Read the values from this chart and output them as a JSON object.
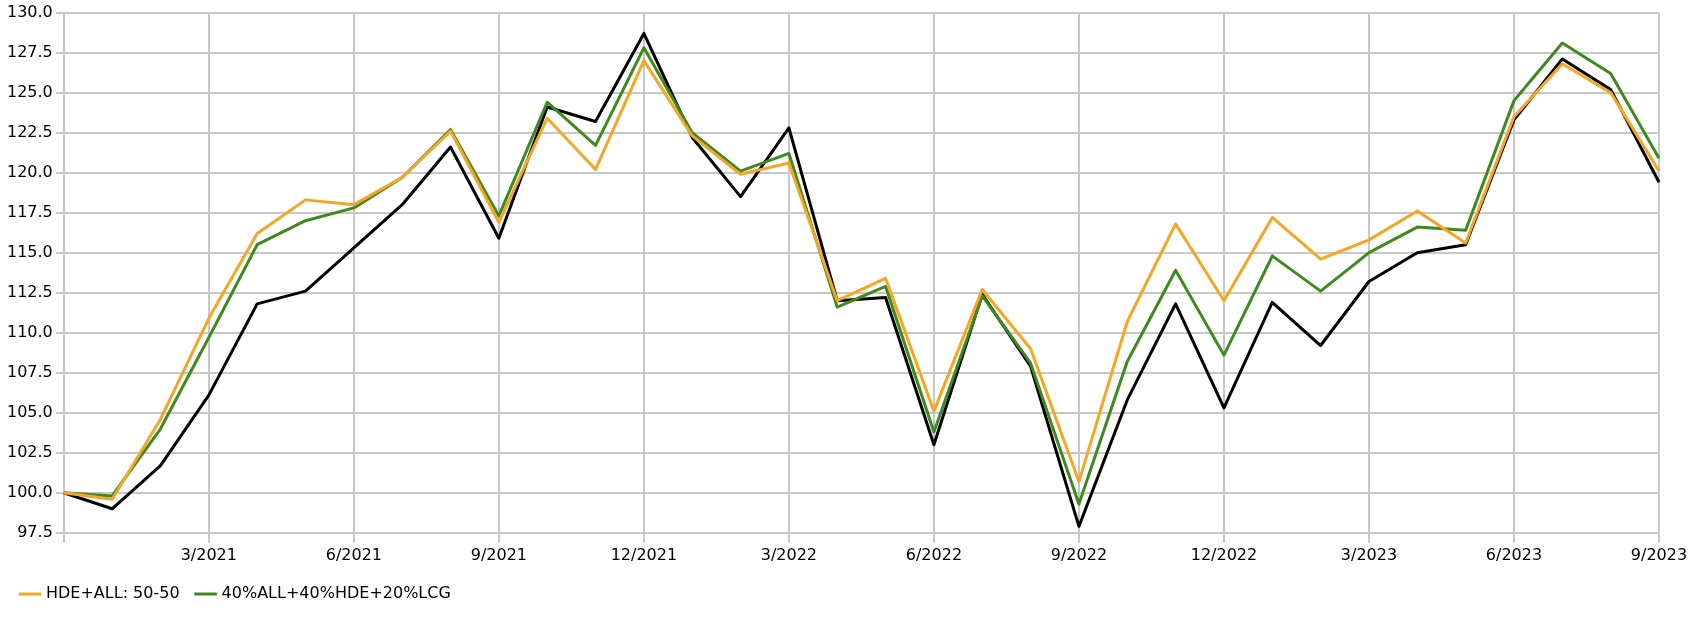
{
  "chart_data": {
    "type": "line",
    "categories": [
      null,
      null,
      null,
      "3/2021",
      null,
      null,
      "6/2021",
      null,
      null,
      "9/2021",
      null,
      null,
      "12/2021",
      null,
      null,
      "3/2022",
      null,
      null,
      "6/2022",
      null,
      null,
      "9/2022",
      null,
      null,
      "12/2022",
      null,
      null,
      "3/2023",
      null,
      null,
      "6/2023",
      null,
      null,
      "9/2023"
    ],
    "series": [
      {
        "name": "HDE+ALL: 50-50",
        "color": "#f5a623",
        "values": [
          100.0,
          99.6,
          104.6,
          110.9,
          116.2,
          118.3,
          118.0,
          119.7,
          122.6,
          116.9,
          123.4,
          120.2,
          127.0,
          122.3,
          119.9,
          120.6,
          112.0,
          113.4,
          105.1,
          112.7,
          109.0,
          100.7,
          110.7,
          116.8,
          112.0,
          117.2,
          114.6,
          115.8,
          117.6,
          115.6,
          123.5,
          126.8,
          125.0,
          120.1
        ]
      },
      {
        "name": "40%ALL+40%HDE+20%LCG",
        "color": "#3f8a1f",
        "values": [
          100.0,
          99.8,
          104.0,
          109.7,
          115.5,
          117.0,
          117.8,
          119.7,
          122.7,
          117.3,
          124.4,
          121.7,
          127.8,
          122.5,
          120.1,
          121.2,
          111.6,
          112.9,
          103.8,
          112.3,
          108.1,
          99.3,
          108.2,
          113.9,
          108.6,
          114.8,
          112.6,
          115.0,
          116.6,
          116.4,
          124.5,
          128.1,
          126.2,
          120.9
        ]
      },
      {
        "color": "#000000",
        "values": [
          100.0,
          99.0,
          101.7,
          106.1,
          111.8,
          112.6,
          115.3,
          118.0,
          121.6,
          115.9,
          124.1,
          123.2,
          128.7,
          122.2,
          118.5,
          122.8,
          112.0,
          112.2,
          103.0,
          112.4,
          107.9,
          97.9,
          105.8,
          111.8,
          105.3,
          111.9,
          109.2,
          113.2,
          115.0,
          115.5,
          123.3,
          127.1,
          125.2,
          119.4
        ]
      }
    ],
    "ylim": [
      97.5,
      130
    ],
    "yticks": [
      {
        "value": 97.5,
        "label": "97.5"
      },
      {
        "value": 100,
        "label": "100.0"
      },
      {
        "value": 102.5,
        "label": "102.5"
      },
      {
        "value": 105,
        "label": "105.0"
      },
      {
        "value": 107.5,
        "label": "107.5"
      },
      {
        "value": 110,
        "label": "110.0"
      },
      {
        "value": 112.5,
        "label": "112.5"
      },
      {
        "value": 115,
        "label": "115.0"
      },
      {
        "value": 117.5,
        "label": "117.5"
      },
      {
        "value": 120,
        "label": "120.0"
      },
      {
        "value": 122.5,
        "label": "122.5"
      },
      {
        "value": 125,
        "label": "125.0"
      },
      {
        "value": 127.5,
        "label": "127.5"
      },
      {
        "value": 130,
        "label": "130.0"
      }
    ],
    "grid": true,
    "legend": "bottom",
    "marker": "none",
    "line_style": "solid"
  }
}
